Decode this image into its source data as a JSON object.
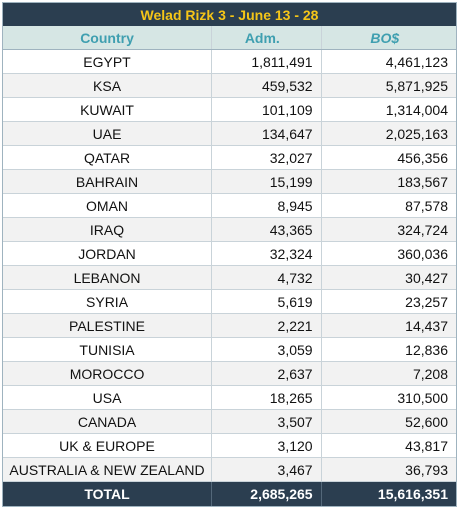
{
  "title": "Welad Rizk 3 - June 13 - 28",
  "columns": [
    "Country",
    "Adm.",
    "BO$"
  ],
  "rows": [
    [
      "EGYPT",
      "1,811,491",
      "4,461,123"
    ],
    [
      "KSA",
      "459,532",
      "5,871,925"
    ],
    [
      "KUWAIT",
      "101,109",
      "1,314,004"
    ],
    [
      "UAE",
      "134,647",
      "2,025,163"
    ],
    [
      "QATAR",
      "32,027",
      "456,356"
    ],
    [
      "BAHRAIN",
      "15,199",
      "183,567"
    ],
    [
      "OMAN",
      "8,945",
      "87,578"
    ],
    [
      "IRAQ",
      "43,365",
      "324,724"
    ],
    [
      "JORDAN",
      "32,324",
      "360,036"
    ],
    [
      "LEBANON",
      "4,732",
      "30,427"
    ],
    [
      "SYRIA",
      "5,619",
      "23,257"
    ],
    [
      "PALESTINE",
      "2,221",
      "14,437"
    ],
    [
      "TUNISIA",
      "3,059",
      "12,836"
    ],
    [
      "MOROCCO",
      "2,637",
      "7,208"
    ],
    [
      "USA",
      "18,265",
      "310,500"
    ],
    [
      "CANADA",
      "3,507",
      "52,600"
    ],
    [
      "UK & EUROPE",
      "3,120",
      "43,817"
    ],
    [
      "AUSTRALIA & NEW ZEALAND",
      "3,467",
      "36,793"
    ]
  ],
  "total": [
    "TOTAL",
    "2,685,265",
    "15,616,351"
  ],
  "colors": {
    "title_bg": "#2b3e50",
    "title_text": "#f5c518",
    "header_bg": "#d6e6e4",
    "header_text": "#3f9fb0",
    "total_bg": "#2b3e50",
    "total_text": "#ffffff"
  }
}
